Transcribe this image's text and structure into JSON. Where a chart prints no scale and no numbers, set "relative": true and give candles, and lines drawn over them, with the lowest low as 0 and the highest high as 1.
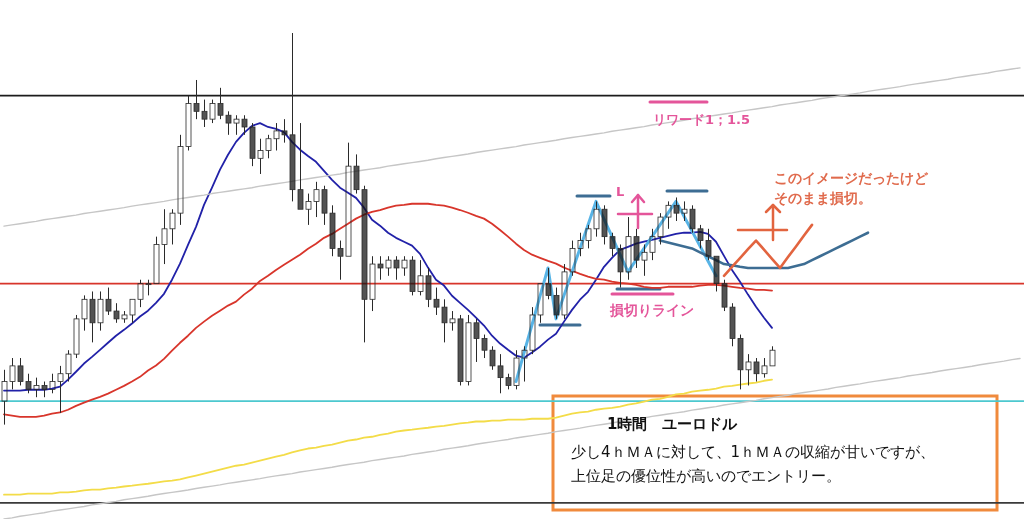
{
  "chart_data": {
    "type": "candlestick",
    "relative": true,
    "categories": [
      null,
      null,
      null,
      null,
      null,
      null,
      null,
      null,
      null,
      null,
      null,
      null,
      null,
      null,
      null,
      null,
      null,
      null,
      null,
      null,
      null,
      null,
      null,
      null,
      null,
      null,
      null,
      null,
      null,
      null,
      null,
      null,
      null,
      null,
      null,
      null,
      null,
      null,
      null,
      null,
      null,
      null,
      null,
      null,
      null,
      null,
      null,
      null,
      null,
      null,
      null,
      null,
      null,
      null,
      null,
      null,
      null,
      null,
      null,
      null,
      null,
      null,
      null,
      null,
      null,
      null,
      null,
      null,
      null,
      null,
      null,
      null,
      null,
      null,
      null,
      null,
      null,
      null,
      null,
      null,
      null,
      null,
      null,
      null,
      null,
      null,
      null,
      null,
      null,
      null,
      null,
      null,
      null,
      null,
      null,
      null,
      null,
      null,
      null,
      null,
      null,
      null,
      null,
      null,
      null,
      null,
      null,
      null,
      null,
      null,
      null,
      null,
      null,
      null,
      null,
      null,
      null,
      null,
      null,
      null,
      null,
      null,
      null,
      null,
      null,
      null,
      null,
      null
    ],
    "ohlc": [
      [
        0.06,
        0.14,
        0.0,
        0.11
      ],
      [
        0.11,
        0.17,
        0.09,
        0.15
      ],
      [
        0.15,
        0.17,
        0.1,
        0.11
      ],
      [
        0.11,
        0.13,
        0.08,
        0.09
      ],
      [
        0.09,
        0.12,
        0.07,
        0.1
      ],
      [
        0.1,
        0.11,
        0.07,
        0.09
      ],
      [
        0.09,
        0.13,
        0.08,
        0.11
      ],
      [
        0.11,
        0.15,
        0.03,
        0.13
      ],
      [
        0.13,
        0.19,
        0.11,
        0.18
      ],
      [
        0.18,
        0.28,
        0.17,
        0.27
      ],
      [
        0.27,
        0.33,
        0.24,
        0.32
      ],
      [
        0.32,
        0.34,
        0.21,
        0.26
      ],
      [
        0.26,
        0.34,
        0.24,
        0.32
      ],
      [
        0.32,
        0.35,
        0.28,
        0.29
      ],
      [
        0.29,
        0.31,
        0.26,
        0.27
      ],
      [
        0.27,
        0.29,
        0.26,
        0.28
      ],
      [
        0.28,
        0.32,
        0.26,
        0.32
      ],
      [
        0.32,
        0.37,
        0.3,
        0.36
      ],
      [
        0.36,
        0.37,
        0.33,
        0.36
      ],
      [
        0.36,
        0.48,
        0.36,
        0.46
      ],
      [
        0.46,
        0.55,
        0.41,
        0.5
      ],
      [
        0.5,
        0.55,
        0.46,
        0.54
      ],
      [
        0.54,
        0.74,
        0.51,
        0.71
      ],
      [
        0.71,
        0.84,
        0.7,
        0.82
      ],
      [
        0.82,
        0.88,
        0.78,
        0.8
      ],
      [
        0.8,
        0.83,
        0.76,
        0.78
      ],
      [
        0.78,
        0.83,
        0.77,
        0.82
      ],
      [
        0.82,
        0.86,
        0.78,
        0.79
      ],
      [
        0.79,
        0.8,
        0.74,
        0.77
      ],
      [
        0.77,
        0.79,
        0.74,
        0.78
      ],
      [
        0.78,
        0.79,
        0.74,
        0.76
      ],
      [
        0.76,
        0.77,
        0.66,
        0.68
      ],
      [
        0.68,
        0.73,
        0.64,
        0.7
      ],
      [
        0.7,
        0.74,
        0.68,
        0.73
      ],
      [
        0.73,
        0.77,
        0.7,
        0.75
      ],
      [
        0.75,
        0.78,
        0.72,
        0.74
      ],
      [
        0.74,
        1.0,
        0.57,
        0.6
      ],
      [
        0.6,
        0.77,
        0.55,
        0.55
      ],
      [
        0.55,
        0.59,
        0.51,
        0.57
      ],
      [
        0.57,
        0.62,
        0.53,
        0.6
      ],
      [
        0.6,
        0.61,
        0.51,
        0.54
      ],
      [
        0.54,
        0.56,
        0.43,
        0.45
      ],
      [
        0.45,
        0.47,
        0.37,
        0.43
      ],
      [
        0.43,
        0.72,
        0.43,
        0.66
      ],
      [
        0.66,
        0.69,
        0.59,
        0.6
      ],
      [
        0.6,
        0.61,
        0.21,
        0.32
      ],
      [
        0.32,
        0.43,
        0.29,
        0.41
      ],
      [
        0.41,
        0.43,
        0.37,
        0.4
      ],
      [
        0.4,
        0.43,
        0.38,
        0.42
      ],
      [
        0.42,
        0.43,
        0.37,
        0.4
      ],
      [
        0.4,
        0.43,
        0.38,
        0.42
      ],
      [
        0.42,
        0.43,
        0.33,
        0.34
      ],
      [
        0.34,
        0.42,
        0.33,
        0.38
      ],
      [
        0.38,
        0.4,
        0.3,
        0.32
      ],
      [
        0.32,
        0.35,
        0.28,
        0.3
      ],
      [
        0.3,
        0.32,
        0.21,
        0.26
      ],
      [
        0.26,
        0.29,
        0.24,
        0.27
      ],
      [
        0.27,
        0.28,
        0.1,
        0.11
      ],
      [
        0.11,
        0.28,
        0.1,
        0.26
      ],
      [
        0.26,
        0.27,
        0.16,
        0.22
      ],
      [
        0.22,
        0.23,
        0.17,
        0.19
      ],
      [
        0.19,
        0.2,
        0.14,
        0.15
      ],
      [
        0.15,
        0.18,
        0.08,
        0.12
      ],
      [
        0.12,
        0.13,
        0.09,
        0.1
      ],
      [
        0.1,
        0.19,
        0.09,
        0.17
      ],
      [
        0.17,
        0.2,
        0.11,
        0.19
      ],
      [
        0.19,
        0.3,
        0.18,
        0.28
      ],
      [
        0.28,
        0.36,
        0.26,
        0.36
      ],
      [
        0.36,
        0.4,
        0.32,
        0.33
      ],
      [
        0.33,
        0.35,
        0.27,
        0.28
      ],
      [
        0.28,
        0.41,
        0.27,
        0.39
      ],
      [
        0.39,
        0.47,
        0.38,
        0.45
      ],
      [
        0.45,
        0.49,
        0.43,
        0.47
      ],
      [
        0.47,
        0.51,
        0.45,
        0.5
      ],
      [
        0.5,
        0.57,
        0.48,
        0.55
      ],
      [
        0.55,
        0.56,
        0.46,
        0.48
      ],
      [
        0.48,
        0.49,
        0.43,
        0.45
      ],
      [
        0.45,
        0.46,
        0.35,
        0.39
      ],
      [
        0.39,
        0.53,
        0.37,
        0.48
      ],
      [
        0.48,
        0.5,
        0.4,
        0.42
      ],
      [
        0.42,
        0.46,
        0.38,
        0.44
      ],
      [
        0.44,
        0.5,
        0.42,
        0.48
      ],
      [
        0.48,
        0.54,
        0.46,
        0.53
      ],
      [
        0.53,
        0.57,
        0.5,
        0.56
      ],
      [
        0.56,
        0.58,
        0.52,
        0.54
      ],
      [
        0.54,
        0.57,
        0.52,
        0.55
      ],
      [
        0.55,
        0.56,
        0.49,
        0.5
      ],
      [
        0.5,
        0.51,
        0.45,
        0.47
      ],
      [
        0.47,
        0.5,
        0.42,
        0.43
      ],
      [
        0.43,
        0.43,
        0.34,
        0.36
      ],
      [
        0.36,
        0.37,
        0.29,
        0.3
      ],
      [
        0.3,
        0.31,
        0.2,
        0.22
      ],
      [
        0.22,
        0.23,
        0.09,
        0.14
      ],
      [
        0.14,
        0.18,
        0.1,
        0.16
      ],
      [
        0.16,
        0.17,
        0.11,
        0.13
      ],
      [
        0.13,
        0.17,
        0.12,
        0.15
      ],
      [
        0.15,
        0.2,
        0.15,
        0.19
      ],
      null,
      null,
      null,
      null,
      null,
      null,
      null,
      null,
      null,
      null,
      null,
      null,
      null,
      null,
      null,
      null,
      null,
      null,
      null,
      null,
      null,
      null,
      null,
      null,
      null,
      null,
      null,
      null,
      null,
      null,
      null
    ],
    "series": [
      {
        "type": "line",
        "color": "#2121a8",
        "values": [
          0.087,
          0.087,
          0.087,
          0.089,
          0.089,
          0.089,
          0.092,
          0.097,
          0.115,
          0.135,
          0.156,
          0.173,
          0.191,
          0.209,
          0.227,
          0.242,
          0.258,
          0.276,
          0.291,
          0.311,
          0.334,
          0.37,
          0.411,
          0.459,
          0.505,
          0.561,
          0.605,
          0.651,
          0.689,
          0.722,
          0.745,
          0.763,
          0.77,
          0.76,
          0.755,
          0.747,
          0.722,
          0.702,
          0.686,
          0.671,
          0.648,
          0.625,
          0.605,
          0.592,
          0.579,
          0.554,
          0.523,
          0.508,
          0.49,
          0.477,
          0.467,
          0.457,
          0.436,
          0.401,
          0.37,
          0.355,
          0.329,
          0.311,
          0.293,
          0.273,
          0.253,
          0.227,
          0.207,
          0.191,
          0.176,
          0.171,
          0.184,
          0.199,
          0.217,
          0.232,
          0.263,
          0.293,
          0.319,
          0.339,
          0.37,
          0.403,
          0.426,
          0.446,
          0.454,
          0.462,
          0.467,
          0.472,
          0.477,
          0.482,
          0.487,
          0.49,
          0.49,
          0.492,
          0.487,
          0.467,
          0.431,
          0.395,
          0.365,
          0.332,
          0.301,
          0.273,
          0.247,
          null,
          null,
          null,
          null,
          null,
          null,
          null,
          null,
          null,
          null,
          null,
          null,
          null,
          null,
          null,
          null,
          null,
          null,
          null,
          null,
          null,
          null,
          null,
          null,
          null,
          null,
          null,
          null,
          null,
          null,
          null
        ]
      },
      {
        "type": "line",
        "color": "#d8352b",
        "values": [
          0.026,
          0.023,
          0.02,
          0.02,
          0.02,
          0.023,
          0.028,
          0.031,
          0.038,
          0.048,
          0.056,
          0.064,
          0.071,
          0.079,
          0.089,
          0.099,
          0.11,
          0.122,
          0.138,
          0.151,
          0.168,
          0.189,
          0.209,
          0.227,
          0.247,
          0.263,
          0.278,
          0.291,
          0.304,
          0.314,
          0.332,
          0.347,
          0.367,
          0.38,
          0.395,
          0.408,
          0.421,
          0.434,
          0.449,
          0.462,
          0.477,
          0.487,
          0.5,
          0.513,
          0.526,
          0.536,
          0.543,
          0.548,
          0.554,
          0.559,
          0.561,
          0.564,
          0.564,
          0.564,
          0.561,
          0.559,
          0.554,
          0.548,
          0.541,
          0.533,
          0.526,
          0.513,
          0.497,
          0.48,
          0.462,
          0.446,
          0.434,
          0.426,
          0.418,
          0.411,
          0.401,
          0.393,
          0.385,
          0.378,
          0.372,
          0.37,
          0.365,
          0.362,
          0.36,
          0.357,
          0.352,
          0.349,
          0.349,
          0.352,
          0.352,
          0.352,
          0.352,
          0.355,
          0.357,
          0.357,
          0.355,
          0.352,
          0.349,
          0.347,
          0.344,
          0.344,
          0.342,
          null,
          null,
          null,
          null,
          null,
          null,
          null,
          null,
          null,
          null,
          null,
          null,
          null,
          null,
          null,
          null,
          null,
          null,
          null,
          null,
          null,
          null,
          null,
          null,
          null,
          null,
          null,
          null,
          null,
          null,
          null
        ]
      },
      {
        "type": "line",
        "color": "#f3dc48",
        "values": [
          -0.179,
          -0.179,
          -0.179,
          -0.176,
          -0.176,
          -0.176,
          -0.176,
          -0.173,
          -0.173,
          -0.171,
          -0.168,
          -0.166,
          -0.166,
          -0.163,
          -0.161,
          -0.158,
          -0.156,
          -0.153,
          -0.151,
          -0.148,
          -0.145,
          -0.143,
          -0.14,
          -0.135,
          -0.13,
          -0.125,
          -0.12,
          -0.115,
          -0.11,
          -0.105,
          -0.102,
          -0.097,
          -0.092,
          -0.087,
          -0.082,
          -0.077,
          -0.071,
          -0.066,
          -0.061,
          -0.059,
          -0.054,
          -0.051,
          -0.046,
          -0.041,
          -0.038,
          -0.033,
          -0.031,
          -0.026,
          -0.023,
          -0.018,
          -0.015,
          -0.013,
          -0.01,
          -0.008,
          -0.005,
          -0.003,
          0.0,
          0.003,
          0.005,
          0.008,
          0.008,
          0.01,
          0.01,
          0.013,
          0.013,
          0.013,
          0.015,
          0.015,
          0.015,
          0.018,
          0.023,
          0.028,
          0.031,
          0.033,
          0.038,
          0.041,
          0.043,
          0.046,
          0.051,
          0.054,
          0.059,
          0.064,
          0.066,
          0.071,
          0.077,
          0.079,
          0.084,
          0.087,
          0.089,
          0.092,
          0.097,
          0.099,
          0.102,
          0.105,
          0.107,
          0.112,
          0.115,
          null,
          null,
          null,
          null,
          null,
          null,
          null,
          null,
          null,
          null,
          null,
          null,
          null,
          null,
          null,
          null,
          null,
          null,
          null,
          null,
          null,
          null,
          null,
          null,
          null,
          null,
          null,
          null,
          null,
          null,
          null
        ]
      },
      {
        "type": "line",
        "color": "#c6c6c6",
        "values": [
          0.507,
          0.51,
          0.513,
          0.516,
          0.519,
          0.523,
          0.526,
          0.529,
          0.532,
          0.535,
          0.539,
          0.542,
          0.545,
          0.548,
          0.551,
          0.554,
          0.558,
          0.561,
          0.564,
          0.567,
          0.57,
          0.574,
          0.577,
          0.58,
          0.583,
          0.586,
          0.59,
          0.593,
          0.596,
          0.599,
          0.602,
          0.605,
          0.609,
          0.612,
          0.615,
          0.618,
          0.621,
          0.625,
          0.628,
          0.631,
          0.634,
          0.637,
          0.64,
          0.644,
          0.647,
          0.65,
          0.653,
          0.656,
          0.66,
          0.663,
          0.666,
          0.669,
          0.672,
          0.675,
          0.679,
          0.682,
          0.685,
          0.688,
          0.691,
          0.695,
          0.698,
          0.701,
          0.704,
          0.707,
          0.71,
          0.714,
          0.717,
          0.72,
          0.723,
          0.726,
          0.73,
          0.733,
          0.736,
          0.739,
          0.742,
          0.745,
          0.749,
          0.752,
          0.755,
          0.758,
          0.761,
          0.765,
          0.768,
          0.771,
          0.774,
          0.777,
          0.781,
          0.784,
          0.787,
          0.79,
          0.793,
          0.796,
          0.8,
          0.803,
          0.806,
          0.809,
          0.812,
          0.816,
          0.819,
          0.822,
          0.825,
          0.828,
          0.832,
          0.835,
          0.838,
          0.841,
          0.844,
          0.847,
          0.851,
          0.854,
          0.857,
          0.86,
          0.863,
          0.867,
          0.87,
          0.873,
          0.876,
          0.879,
          0.882,
          0.886,
          0.889,
          0.892,
          0.895,
          0.898,
          0.902,
          0.905,
          0.908,
          0.911
        ]
      },
      {
        "type": "line",
        "color": "#c6c6c6",
        "values": [
          -0.241,
          -0.238,
          -0.234,
          -0.231,
          -0.228,
          -0.225,
          -0.221,
          -0.218,
          -0.215,
          -0.212,
          -0.209,
          -0.205,
          -0.202,
          -0.199,
          -0.196,
          -0.192,
          -0.189,
          -0.186,
          -0.183,
          -0.179,
          -0.176,
          -0.173,
          -0.17,
          -0.167,
          -0.163,
          -0.16,
          -0.157,
          -0.154,
          -0.15,
          -0.147,
          -0.144,
          -0.141,
          -0.138,
          -0.134,
          -0.131,
          -0.128,
          -0.125,
          -0.121,
          -0.118,
          -0.115,
          -0.112,
          -0.109,
          -0.105,
          -0.102,
          -0.099,
          -0.096,
          -0.092,
          -0.089,
          -0.086,
          -0.083,
          -0.08,
          -0.076,
          -0.073,
          -0.07,
          -0.067,
          -0.063,
          -0.06,
          -0.057,
          -0.054,
          -0.05,
          -0.047,
          -0.044,
          -0.041,
          -0.038,
          -0.034,
          -0.031,
          -0.028,
          -0.025,
          -0.022,
          -0.018,
          -0.015,
          -0.012,
          -0.009,
          -0.005,
          -0.002,
          0.001,
          0.004,
          0.008,
          0.011,
          0.014,
          0.017,
          0.021,
          0.024,
          0.027,
          0.03,
          0.033,
          0.037,
          0.04,
          0.043,
          0.046,
          0.05,
          0.053,
          0.056,
          0.059,
          0.062,
          0.066,
          0.069,
          0.072,
          0.075,
          0.079,
          0.082,
          0.085,
          0.088,
          0.091,
          0.095,
          0.098,
          0.101,
          0.104,
          0.108,
          0.111,
          0.114,
          0.117,
          0.12,
          0.124,
          0.127,
          0.13,
          0.133,
          0.137,
          0.14,
          0.143,
          0.146,
          0.149,
          0.153,
          0.156,
          0.159,
          0.162,
          0.166,
          0.169
        ]
      },
      {
        "type": "line",
        "color": "#58b4e6",
        "values": [
          null,
          null,
          null,
          null,
          null,
          null,
          null,
          null,
          null,
          null,
          null,
          null,
          null,
          null,
          null,
          null,
          null,
          null,
          null,
          null,
          null,
          null,
          null,
          null,
          null,
          null,
          null,
          null,
          null,
          null,
          null,
          null,
          null,
          null,
          null,
          null,
          null,
          null,
          null,
          null,
          null,
          null,
          null,
          null,
          null,
          null,
          null,
          null,
          null,
          null,
          null,
          null,
          null,
          null,
          null,
          null,
          null,
          null,
          null,
          null,
          null,
          null,
          null,
          null,
          0.11,
          0.183,
          0.255,
          0.328,
          0.4,
          0.27,
          0.33,
          0.39,
          0.45,
          0.51,
          0.57,
          0.525,
          0.48,
          0.435,
          0.39,
          0.42,
          0.45,
          0.48,
          0.51,
          0.54,
          0.57,
          0.532,
          0.494,
          0.456,
          0.418,
          0.38,
          null,
          null,
          null,
          null,
          null,
          null,
          null,
          null,
          null,
          null,
          null,
          null,
          null,
          null,
          null,
          null,
          null,
          null,
          null,
          null,
          null,
          null,
          null,
          null,
          null,
          null,
          null,
          null,
          null,
          null,
          null,
          null,
          null,
          null,
          null,
          null,
          null,
          null
        ]
      },
      {
        "type": "line",
        "color": "#3d6d93",
        "values": [
          null,
          null,
          null,
          null,
          null,
          null,
          null,
          null,
          null,
          null,
          null,
          null,
          null,
          null,
          null,
          null,
          null,
          null,
          null,
          null,
          null,
          null,
          null,
          null,
          null,
          null,
          null,
          null,
          null,
          null,
          null,
          null,
          null,
          null,
          null,
          null,
          null,
          null,
          null,
          null,
          null,
          null,
          null,
          null,
          null,
          null,
          null,
          null,
          null,
          null,
          null,
          null,
          null,
          null,
          null,
          null,
          null,
          null,
          null,
          null,
          null,
          null,
          null,
          null,
          null,
          null,
          null,
          null,
          null,
          null,
          null,
          null,
          null,
          null,
          null,
          null,
          null,
          null,
          null,
          null,
          null,
          null,
          0.47,
          0.465,
          0.46,
          0.455,
          0.45,
          0.44,
          0.43,
          0.42,
          0.41,
          0.407,
          0.403,
          0.4,
          0.4,
          0.4,
          0.4,
          0.4,
          0.4,
          0.405,
          0.41,
          0.42,
          0.43,
          0.44,
          0.45,
          0.46,
          0.47,
          0.48,
          0.49,
          null,
          null,
          null,
          null,
          null,
          null,
          null,
          null,
          null,
          null,
          null,
          null,
          null,
          null,
          null,
          null,
          null,
          null,
          null
        ]
      },
      {
        "type": "line",
        "color": "#e2643f",
        "values": [
          null,
          null,
          null,
          null,
          null,
          null,
          null,
          null,
          null,
          null,
          null,
          null,
          null,
          null,
          null,
          null,
          null,
          null,
          null,
          null,
          null,
          null,
          null,
          null,
          null,
          null,
          null,
          null,
          null,
          null,
          null,
          null,
          null,
          null,
          null,
          null,
          null,
          null,
          null,
          null,
          null,
          null,
          null,
          null,
          null,
          null,
          null,
          null,
          null,
          null,
          null,
          null,
          null,
          null,
          null,
          null,
          null,
          null,
          null,
          null,
          null,
          null,
          null,
          null,
          null,
          null,
          null,
          null,
          null,
          null,
          null,
          null,
          null,
          null,
          null,
          null,
          null,
          null,
          null,
          null,
          null,
          null,
          null,
          null,
          null,
          null,
          null,
          null,
          null,
          null,
          0.38,
          0.403,
          0.425,
          0.448,
          0.47,
          0.447,
          0.423,
          0.4,
          0.428,
          0.455,
          0.483,
          0.51,
          null,
          null,
          null,
          null,
          null,
          null,
          null,
          null,
          null,
          null,
          null,
          null,
          null,
          null,
          null,
          null,
          null,
          null,
          null,
          null,
          null,
          null,
          null,
          null,
          null,
          null
        ]
      }
    ],
    "ref_lines": [
      {
        "axis": "y",
        "value": 0.84,
        "color": "#1c1c1c"
      },
      {
        "axis": "y",
        "value": 0.36,
        "color": "#d8352b"
      },
      {
        "axis": "y",
        "value": 0.06,
        "color": "#4cc8cf"
      },
      {
        "axis": "y",
        "value": -0.2,
        "color": "#3a3a3a"
      }
    ],
    "annotations": [
      "リワード1；1.5",
      "L",
      "損切りライン",
      "このイメージだったけど",
      "そのまま損切。",
      "1時間　ユーロドル",
      "少し4ｈＭＡに対して、1ｈＭＡの収縮が甘いですが、",
      "上位足の優位性が高いのでエントリー。"
    ]
  }
}
